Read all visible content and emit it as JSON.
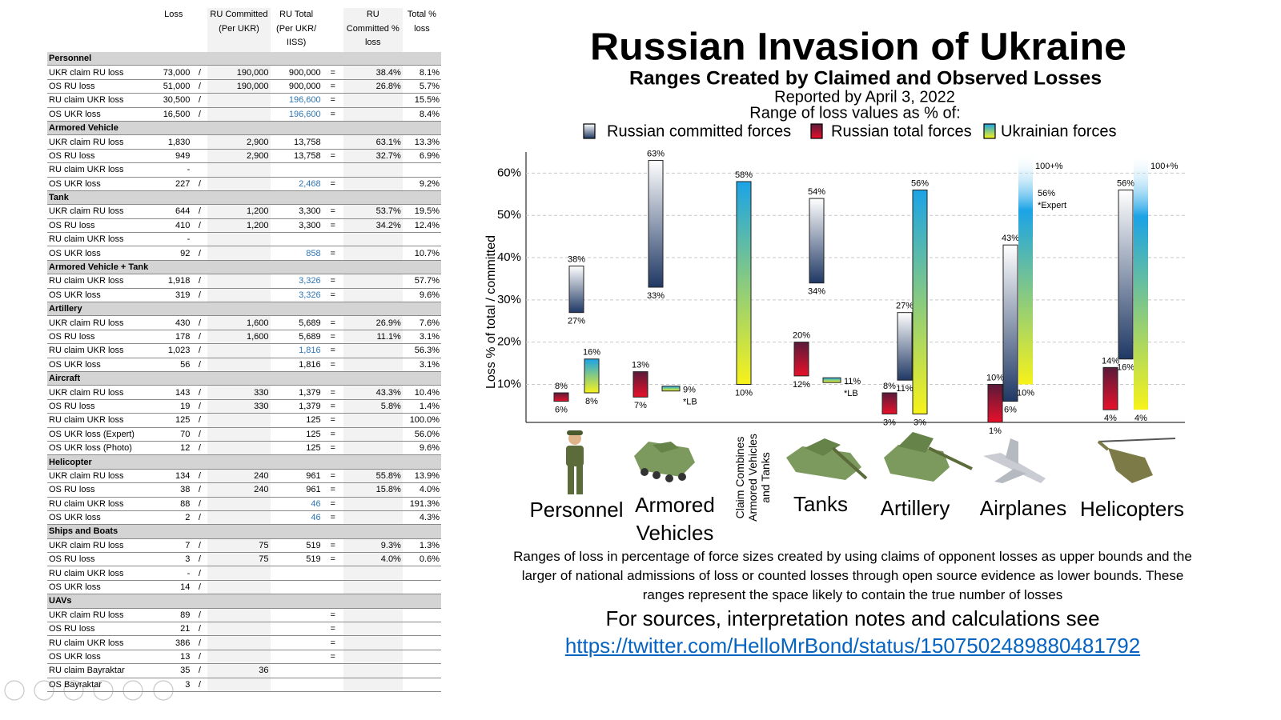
{
  "table": {
    "columns": [
      null,
      "Loss",
      null,
      "RU Committed (Per UKR)",
      "RU Total (Per UKR/ IISS)",
      null,
      "RU Committed % loss",
      "Total % loss"
    ],
    "sections": [
      {
        "name": "Personnel",
        "rows": [
          {
            "cells": [
              "UKR claim RU loss",
              "73,000",
              "/",
              "190,000",
              "900,000",
              "=",
              "38.4%",
              "8.1%"
            ]
          },
          {
            "cells": [
              "OS RU loss",
              "51,000",
              "/",
              "190,000",
              "900,000",
              "=",
              "26.8%",
              "5.7%"
            ]
          },
          {
            "cells": [
              "RU claim UKR loss",
              "30,500",
              "/",
              null,
              "196,600",
              "=",
              null,
              "15.5%"
            ],
            "total_color": "#2e75b6"
          },
          {
            "cells": [
              "OS UKR loss",
              "16,500",
              "/",
              null,
              "196,600",
              "=",
              null,
              "8.4%"
            ],
            "total_color": "#2e75b6"
          }
        ]
      },
      {
        "name": "Armored Vehicle",
        "rows": [
          {
            "cells": [
              "UKR claim RU loss",
              "1,830",
              null,
              "2,900",
              "13,758",
              null,
              "63.1%",
              "13.3%"
            ]
          },
          {
            "cells": [
              "OS RU loss",
              "949",
              null,
              "2,900",
              "13,758",
              "=",
              "32.7%",
              "6.9%"
            ]
          },
          {
            "cells": [
              "RU claim UKR loss",
              "-",
              null,
              null,
              null,
              null,
              null,
              null
            ]
          },
          {
            "cells": [
              "OS UKR loss",
              "227",
              "/",
              null,
              "2,468",
              "=",
              null,
              "9.2%"
            ],
            "total_color": "#2e75b6"
          }
        ]
      },
      {
        "name": "Tank",
        "rows": [
          {
            "cells": [
              "UKR claim RU loss",
              "644",
              "/",
              "1,200",
              "3,300",
              "=",
              "53.7%",
              "19.5%"
            ]
          },
          {
            "cells": [
              "OS RU loss",
              "410",
              "/",
              "1,200",
              "3,300",
              "=",
              "34.2%",
              "12.4%"
            ]
          },
          {
            "cells": [
              "RU claim UKR loss",
              "-",
              null,
              null,
              null,
              null,
              null,
              null
            ]
          },
          {
            "cells": [
              "OS UKR loss",
              "92",
              "/",
              null,
              "858",
              "=",
              null,
              "10.7%"
            ],
            "total_color": "#2e75b6"
          }
        ]
      },
      {
        "name": "Armored Vehicle + Tank",
        "rows": [
          {
            "cells": [
              "RU claim UKR loss",
              "1,918",
              "/",
              null,
              "3,326",
              "=",
              null,
              "57.7%"
            ],
            "total_color": "#2e75b6"
          },
          {
            "cells": [
              "OS UKR loss",
              "319",
              "/",
              null,
              "3,326",
              "=",
              null,
              "9.6%"
            ],
            "total_color": "#2e75b6"
          }
        ]
      },
      {
        "name": "Artillery",
        "rows": [
          {
            "cells": [
              "UKR claim RU loss",
              "430",
              "/",
              "1,600",
              "5,689",
              "=",
              "26.9%",
              "7.6%"
            ]
          },
          {
            "cells": [
              "OS RU loss",
              "178",
              "/",
              "1,600",
              "5,689",
              "=",
              "11.1%",
              "3.1%"
            ]
          },
          {
            "cells": [
              "RU claim UKR loss",
              "1,023",
              "/",
              null,
              "1,816",
              "=",
              null,
              "56.3%"
            ],
            "total_color": "#2e75b6"
          },
          {
            "cells": [
              "OS UKR loss",
              "56",
              "/",
              null,
              "1,816",
              "=",
              null,
              "3.1%"
            ]
          }
        ]
      },
      {
        "name": "Aircraft",
        "rows": [
          {
            "cells": [
              "UKR claim RU loss",
              "143",
              "/",
              "330",
              "1,379",
              "=",
              "43.3%",
              "10.4%"
            ]
          },
          {
            "cells": [
              "OS RU loss",
              "19",
              "/",
              "330",
              "1,379",
              "=",
              "5.8%",
              "1.4%"
            ]
          },
          {
            "cells": [
              "RU claim UKR loss",
              "125",
              "/",
              null,
              "125",
              "=",
              null,
              "100.0%"
            ]
          },
          {
            "cells": [
              "OS UKR loss (Expert)",
              "70",
              "/",
              null,
              "125",
              "=",
              null,
              "56.0%"
            ]
          },
          {
            "cells": [
              "OS UKR loss (Photo)",
              "12",
              "/",
              null,
              "125",
              "=",
              null,
              "9.6%"
            ]
          }
        ]
      },
      {
        "name": "Helicopter",
        "rows": [
          {
            "cells": [
              "UKR claim RU loss",
              "134",
              "/",
              "240",
              "961",
              "=",
              "55.8%",
              "13.9%"
            ]
          },
          {
            "cells": [
              "OS RU loss",
              "38",
              "/",
              "240",
              "961",
              "=",
              "15.8%",
              "4.0%"
            ]
          },
          {
            "cells": [
              "RU claim UKR loss",
              "88",
              "/",
              null,
              "46",
              "=",
              null,
              "191.3%"
            ],
            "total_color": "#2e75b6"
          },
          {
            "cells": [
              "OS UKR loss",
              "2",
              "/",
              null,
              "46",
              "=",
              null,
              "4.3%"
            ],
            "total_color": "#2e75b6"
          }
        ]
      },
      {
        "name": "Ships and Boats",
        "rows": [
          {
            "cells": [
              "UKR claim RU loss",
              "7",
              "/",
              "75",
              "519",
              "=",
              "9.3%",
              "1.3%"
            ]
          },
          {
            "cells": [
              "OS RU loss",
              "3",
              "/",
              "75",
              "519",
              "=",
              "4.0%",
              "0.6%"
            ]
          },
          {
            "cells": [
              "RU claim UKR loss",
              "-",
              "/",
              null,
              null,
              null,
              null,
              null
            ]
          },
          {
            "cells": [
              "OS UKR loss",
              "14",
              "/",
              null,
              null,
              null,
              null,
              null
            ]
          }
        ]
      },
      {
        "name": "UAVs",
        "rows": [
          {
            "cells": [
              "UKR claim RU loss",
              "89",
              "/",
              null,
              null,
              "=",
              null,
              null
            ]
          },
          {
            "cells": [
              "OS RU loss",
              "21",
              "/",
              null,
              null,
              "=",
              null,
              null
            ]
          },
          {
            "cells": [
              "RU claim UKR loss",
              "386",
              "/",
              null,
              null,
              "=",
              null,
              null
            ]
          },
          {
            "cells": [
              "OS UKR loss",
              "13",
              "/",
              null,
              null,
              "=",
              null,
              null
            ]
          },
          {
            "cells": [
              "RU claim Bayraktar",
              "35",
              "/",
              "36",
              null,
              null,
              null,
              null
            ]
          },
          {
            "cells": [
              "OS Bayraktar",
              "3",
              "/",
              null,
              null,
              null,
              null,
              null
            ]
          }
        ]
      }
    ]
  },
  "chart_data": {
    "type": "range-bar",
    "title": "Russian Invasion of Ukraine",
    "subtitle": "Ranges Created by Claimed and Observed Losses",
    "reported": "Reported by April 3, 2022",
    "legend_title": "Range of loss values as % of:",
    "y_label": "Loss % of total / committed",
    "ylim": [
      1,
      65
    ],
    "yticks": [
      {
        "value": 10,
        "label": "10%"
      },
      {
        "value": 20,
        "label": "20%"
      },
      {
        "value": 30,
        "label": "30%"
      },
      {
        "value": 40,
        "label": "40%"
      },
      {
        "value": 50,
        "label": "50%"
      },
      {
        "value": 60,
        "label": "60%"
      }
    ],
    "grid": true,
    "categories": [
      "Personnel",
      "Armored Vehicles",
      "Claim Combines Armored Vehicles and Tanks",
      "Tanks",
      "Artillery",
      "Airplanes",
      "Helicopters"
    ],
    "series": [
      {
        "name": "Russian committed forces",
        "colors": [
          "#ffffff",
          "#1f3864"
        ],
        "low": [
          27,
          33,
          null,
          34,
          11,
          6,
          16
        ],
        "high": [
          38,
          63,
          null,
          54,
          27,
          43,
          56
        ],
        "low_labels": [
          "27%",
          "33%",
          null,
          "34%",
          "11%",
          "6%",
          "16%"
        ],
        "high_labels": [
          "38%",
          "63%",
          null,
          "54%",
          "27%",
          "43%",
          "56%"
        ]
      },
      {
        "name": "Russian total forces",
        "colors": [
          "#5a1a3a",
          "#e8102a"
        ],
        "low": [
          6,
          7,
          null,
          12,
          3,
          1,
          4
        ],
        "high": [
          8,
          13,
          null,
          20,
          8,
          10,
          14
        ],
        "low_labels": [
          "6%",
          "7%",
          null,
          "12%",
          "3%",
          "1%",
          "4%"
        ],
        "high_labels": [
          "8%",
          "13%",
          null,
          "20%",
          "8%",
          "10%",
          "14%"
        ]
      },
      {
        "name": "Ukrainian forces",
        "colors": [
          "#1ba3e6",
          "#f7f21a"
        ],
        "low": [
          8,
          9,
          10,
          11,
          3,
          10,
          4
        ],
        "high": [
          16,
          9,
          58,
          11,
          56,
          100,
          100
        ],
        "low_labels": [
          "8%",
          null,
          "10%",
          null,
          "3%",
          "10%",
          "4%"
        ],
        "high_labels": [
          "16%",
          "9%",
          "58%",
          "11%",
          "56%",
          "100+%",
          "100+%"
        ]
      }
    ],
    "annotations": [
      {
        "text": "*LB",
        "category": 1
      },
      {
        "text": "*LB",
        "category": 3
      },
      {
        "text": "56%",
        "category": 5
      },
      {
        "text": "*Expert",
        "category": 5
      }
    ],
    "caption": "Ranges of loss in percentage of force sizes created by using claims of opponent losses as upper bounds and the larger of national admissions of loss or counted losses through open source evidence as lower bounds. These ranges represent the space likely to contain the true number of losses",
    "sources": "For sources, interpretation notes and calculations see",
    "link": "https://twitter.com/HelloMrBond/status/1507502489880481792"
  }
}
